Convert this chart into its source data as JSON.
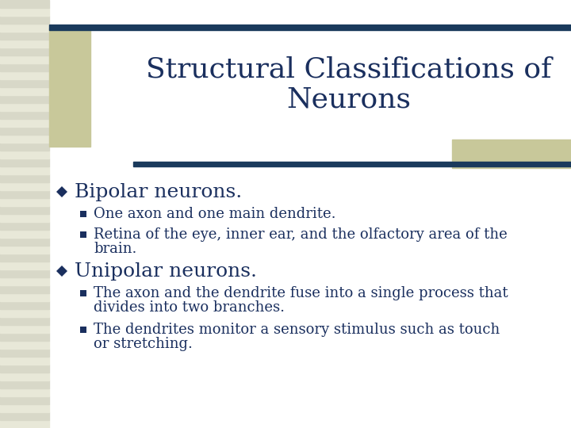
{
  "title_line1": "Structural Classifications of",
  "title_line2": "Neurons",
  "title_color": "#1a2f5e",
  "title_fontsize": 26,
  "bg_color": "#ffffff",
  "left_stripe_light": "#e8e8d8",
  "left_stripe_dark": "#d8d8c8",
  "accent_rect_color": "#c8c89a",
  "bar_color": "#1a3a5c",
  "bullet_fontsize": 18,
  "sub_fontsize": 13,
  "text_color": "#1a2f5e",
  "bullet1_text": "Bipolar neurons.",
  "sub_bullet1_1": "One axon and one main dendrite.",
  "sub_bullet1_2a": "Retina of the eye, inner ear, and the olfactory area of the",
  "sub_bullet1_2b": "brain.",
  "bullet2_text": "Unipolar neurons.",
  "sub_bullet2_1a": "The axon and the dendrite fuse into a single process that",
  "sub_bullet2_1b": "divides into two branches.",
  "sub_bullet2_2a": "The dendrites monitor a sensory stimulus such as touch",
  "sub_bullet2_2b": "or stretching."
}
